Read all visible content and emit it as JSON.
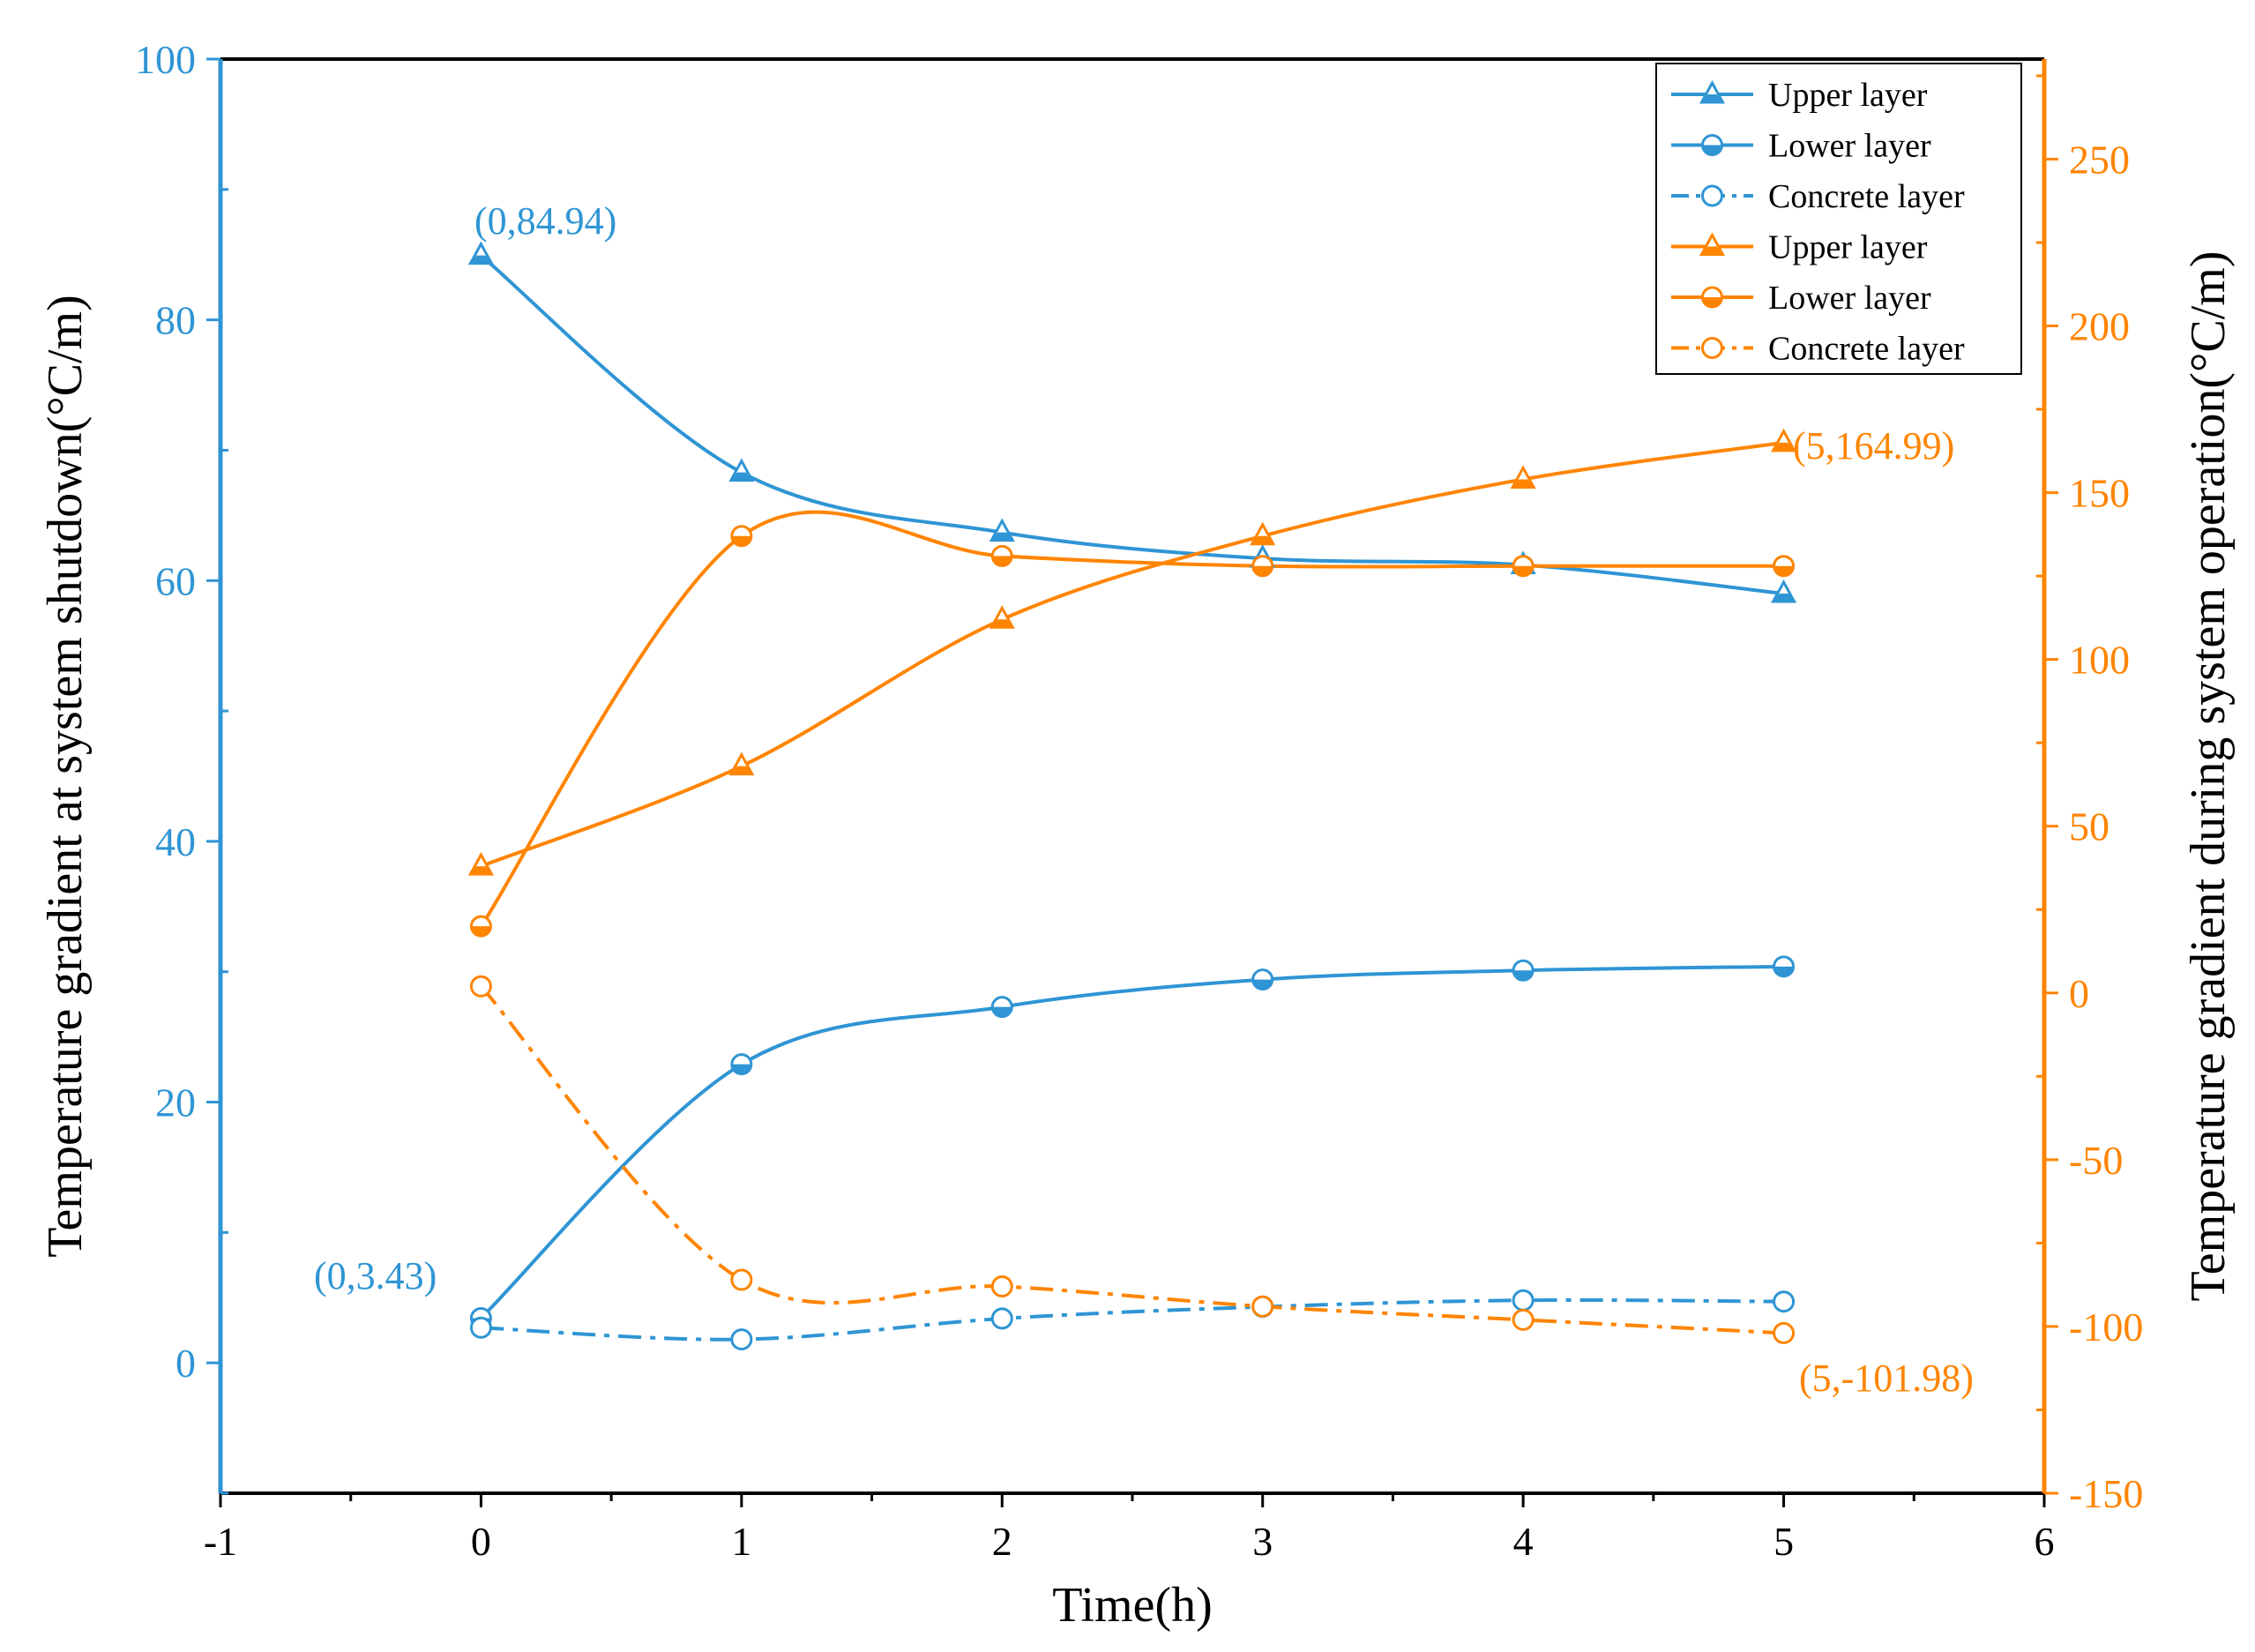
{
  "colors": {
    "blue": "#2F95D4",
    "orange": "#FF8400",
    "black": "#000000"
  },
  "chart_data": {
    "type": "line",
    "x_label": "Time(h)",
    "y_left_label": "Temperature gradient at system shutdown(°C/m)",
    "y_right_label": "Temperature gradient during system operation(°C/m)",
    "xlim": [
      -1,
      6
    ],
    "ylim_left": [
      -10,
      100
    ],
    "ylim_right": [
      -150,
      280
    ],
    "x_ticks": [
      -1,
      0,
      1,
      2,
      3,
      4,
      5,
      6
    ],
    "x_tick_labels": [
      "-1",
      "0",
      "1",
      "2",
      "3",
      "4",
      "5",
      "6"
    ],
    "y_left_ticks": [
      0,
      20,
      40,
      60,
      80,
      100
    ],
    "y_left_tick_labels": [
      "0",
      "20",
      "40",
      "60",
      "80",
      "100"
    ],
    "y_right_ticks": [
      -150,
      -100,
      -50,
      0,
      50,
      100,
      150,
      200,
      250
    ],
    "y_right_tick_labels": [
      "-150",
      "-100",
      "-50",
      "0",
      "50",
      "100",
      "150",
      "200",
      "250"
    ],
    "x": [
      0,
      1,
      2,
      3,
      4,
      5
    ],
    "series": [
      {
        "name": "Upper layer",
        "axis": "left",
        "color": "#2F95D4",
        "marker": "triangle",
        "dash": "solid",
        "values": [
          84.94,
          68.3,
          63.7,
          61.7,
          61.2,
          59.0
        ]
      },
      {
        "name": "Lower layer",
        "axis": "left",
        "color": "#2F95D4",
        "marker": "half-circle",
        "dash": "solid",
        "values": [
          3.43,
          22.9,
          27.3,
          29.4,
          30.1,
          30.4
        ]
      },
      {
        "name": "Concrete layer",
        "axis": "left",
        "color": "#2F95D4",
        "marker": "open-circle",
        "dash": "dashdot",
        "values": [
          2.7,
          1.8,
          3.4,
          4.3,
          4.8,
          4.7
        ]
      },
      {
        "name": "Upper layer",
        "axis": "right",
        "color": "#FF8400",
        "marker": "triangle",
        "dash": "solid",
        "values": [
          38,
          68,
          112,
          137,
          154,
          164.99
        ]
      },
      {
        "name": "Lower layer",
        "axis": "right",
        "color": "#FF8400",
        "marker": "half-circle",
        "dash": "solid",
        "values": [
          20,
          137,
          131,
          128,
          128,
          128
        ]
      },
      {
        "name": "Concrete layer",
        "axis": "right",
        "color": "#FF8400",
        "marker": "open-circle",
        "dash": "dashdot",
        "values": [
          2,
          -86,
          -88,
          -94,
          -98,
          -101.98
        ]
      }
    ],
    "annotations": [
      {
        "text": "(0,84.94)",
        "axis": "left",
        "color": "#2F95D4"
      },
      {
        "text": "(0,3.43)",
        "axis": "left",
        "color": "#2F95D4"
      },
      {
        "text": "(5,164.99)",
        "axis": "right",
        "color": "#FF8400"
      },
      {
        "text": "(5,-101.98)",
        "axis": "right",
        "color": "#FF8400"
      }
    ],
    "legend_position": "top-right",
    "legend_entries": [
      "Upper layer",
      "Lower layer",
      "Concrete layer",
      "Upper layer",
      "Lower layer",
      "Concrete layer"
    ]
  }
}
